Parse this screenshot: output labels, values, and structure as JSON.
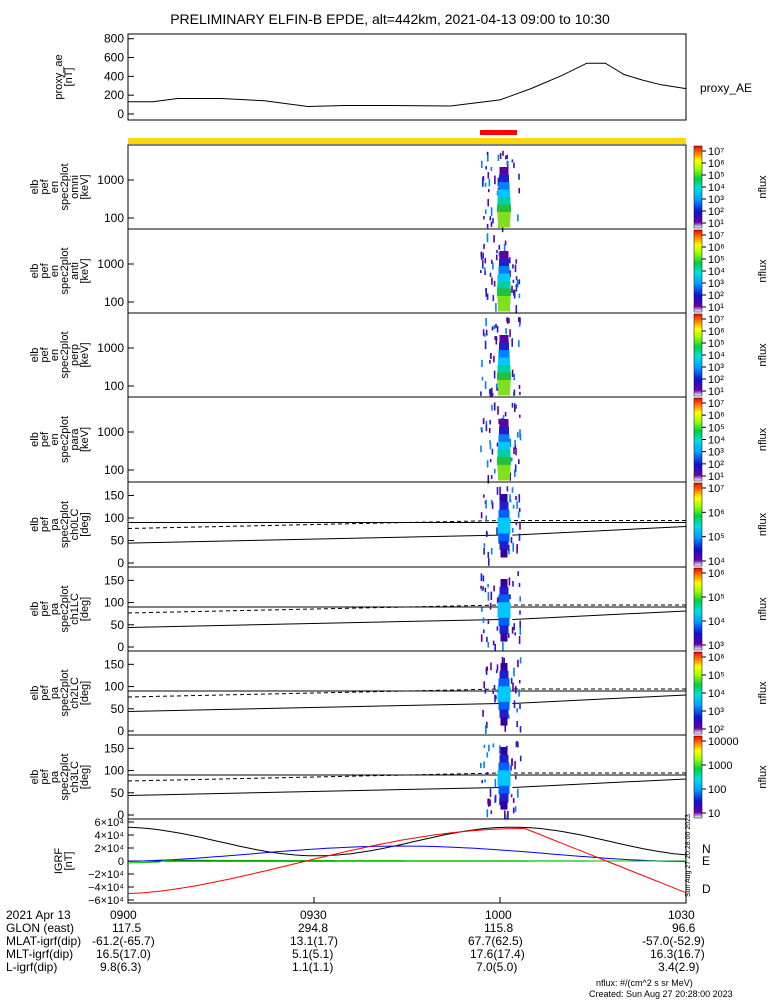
{
  "title": "PRELIMINARY ELFIN-B EPDE, alt=442km, 2021-04-13 09:00 to 10:30",
  "chart_data": [
    {
      "type": "line",
      "id": "proxy_ae",
      "ylabel_lines": [
        "proxy_ae",
        "[nT]"
      ],
      "yticks": [
        "800",
        "600",
        "400",
        "200",
        "0"
      ],
      "ylim": [
        0,
        850
      ],
      "legend": "proxy_AE",
      "series": [
        {
          "name": "proxy_AE",
          "x_minutes": [
            0,
            4,
            8,
            15,
            22,
            29,
            35,
            42,
            52,
            60,
            65,
            70,
            74,
            77,
            80,
            83,
            86,
            90
          ],
          "values": [
            130,
            130,
            165,
            165,
            140,
            80,
            90,
            90,
            85,
            150,
            270,
            410,
            540,
            540,
            420,
            360,
            310,
            270
          ]
        }
      ]
    },
    {
      "type": "heatmap",
      "id": "omni",
      "ylabel_lines": [
        "elb",
        "pef",
        "en",
        "spec2plot",
        "omni",
        "[keV]"
      ],
      "yticks": [
        "1000",
        "100"
      ],
      "scale": "log",
      "colorbar_ticks": [
        "10⁷",
        "10⁶",
        "10⁵",
        "10⁴",
        "10³",
        "10²",
        "10¹"
      ],
      "colorbar_label": "nflux"
    },
    {
      "type": "heatmap",
      "id": "anti",
      "ylabel_lines": [
        "elb",
        "pef",
        "en",
        "spec2plot",
        "anti",
        "[keV]"
      ],
      "yticks": [
        "1000",
        "100"
      ],
      "scale": "log",
      "colorbar_ticks": [
        "10⁷",
        "10⁶",
        "10⁵",
        "10⁴",
        "10³",
        "10²",
        "10¹"
      ],
      "colorbar_label": "nflux"
    },
    {
      "type": "heatmap",
      "id": "perp",
      "ylabel_lines": [
        "elb",
        "pef",
        "en",
        "spec2plot",
        "perp",
        "[keV]"
      ],
      "yticks": [
        "1000",
        "100"
      ],
      "scale": "log",
      "colorbar_ticks": [
        "10⁷",
        "10⁶",
        "10⁵",
        "10⁴",
        "10³",
        "10²",
        "10¹"
      ],
      "colorbar_label": "nflux"
    },
    {
      "type": "heatmap",
      "id": "para",
      "ylabel_lines": [
        "elb",
        "pef",
        "en",
        "spec2plot",
        "para",
        "[keV]"
      ],
      "yticks": [
        "1000",
        "100"
      ],
      "scale": "log",
      "colorbar_ticks": [
        "10⁷",
        "10⁶",
        "10⁵",
        "10⁴",
        "10³",
        "10²",
        "10¹"
      ],
      "colorbar_label": "nflux"
    },
    {
      "type": "heatmap",
      "id": "ch0LC",
      "ylabel_lines": [
        "elb",
        "pef",
        "pa",
        "spec2plot",
        "ch0LC",
        "[deg]"
      ],
      "yticks": [
        "150",
        "100",
        "50",
        "0"
      ],
      "ylim": [
        0,
        180
      ],
      "scale": "log",
      "colorbar_ticks": [
        "10⁷",
        "10⁶",
        "10⁵",
        "10⁴"
      ],
      "colorbar_label": "nflux"
    },
    {
      "type": "heatmap",
      "id": "ch1LC",
      "ylabel_lines": [
        "elb",
        "pef",
        "pa",
        "spec2plot",
        "ch1LC",
        "[deg]"
      ],
      "yticks": [
        "150",
        "100",
        "50",
        "0"
      ],
      "ylim": [
        0,
        180
      ],
      "scale": "log",
      "colorbar_ticks": [
        "10⁶",
        "10⁵",
        "10⁴",
        "10³"
      ],
      "colorbar_label": "nflux"
    },
    {
      "type": "heatmap",
      "id": "ch2LC",
      "ylabel_lines": [
        "elb",
        "pef",
        "pa",
        "spec2plot",
        "ch2LC",
        "[deg]"
      ],
      "yticks": [
        "150",
        "100",
        "50",
        "0"
      ],
      "ylim": [
        0,
        180
      ],
      "scale": "log",
      "colorbar_ticks": [
        "10⁶",
        "10⁵",
        "10⁴",
        "10³",
        "10²"
      ],
      "colorbar_label": "nflux"
    },
    {
      "type": "heatmap",
      "id": "ch3LC",
      "ylabel_lines": [
        "elb",
        "pef",
        "pa",
        "spec2plot",
        "ch3LC",
        "[deg]"
      ],
      "yticks": [
        "150",
        "100",
        "50",
        "0"
      ],
      "ylim": [
        0,
        180
      ],
      "scale": "log",
      "colorbar_ticks": [
        "10000",
        "1000",
        "100",
        "10"
      ],
      "colorbar_label": "nflux"
    },
    {
      "type": "line",
      "id": "igrf",
      "ylabel_lines": [
        "IGRF",
        "[nT]"
      ],
      "yticks": [
        "6×10⁴",
        "4×10⁴",
        "2×10⁴",
        "0",
        "−2×10⁴",
        "−4×10⁴",
        "−6×10⁴"
      ],
      "ylim": [
        -60000,
        60000
      ],
      "legend": [
        "N",
        "E",
        "D"
      ],
      "colors": {
        "N": "#0000ff",
        "E": "#00c000",
        "D": "#ff0000",
        "total": "#000000"
      },
      "side_text": "Sun Aug 27 20:28:00 2023"
    }
  ],
  "ephemeris": {
    "rows": [
      {
        "label": "2021 Apr 13",
        "values": [
          "0900",
          "0930",
          "1000",
          "1030"
        ]
      },
      {
        "label": "GLON (east)",
        "values": [
          "117.5",
          "294.8",
          "115.8",
          "96.6"
        ]
      },
      {
        "label": "MLAT-igrf(dip)",
        "values": [
          "-61.2(-65.7)",
          "13.1(1.7)",
          "67.7(62.5)",
          "-57.0(-52.9)"
        ]
      },
      {
        "label": "MLT-igrf(dip)",
        "values": [
          "16.5(17.0)",
          "5.1(5.1)",
          "17.6(17.4)",
          "16.3(16.7)"
        ]
      },
      {
        "label": "L-igrf(dip)",
        "values": [
          "9.8(6.3)",
          "1.1(1.1)",
          "7.0(5.0)",
          "3.4(2.9)"
        ]
      }
    ]
  },
  "footer": {
    "units": "nflux: #/(cm^2 s sr MeV)",
    "created": "Created: Sun Aug 27 20:28:00 2023"
  }
}
